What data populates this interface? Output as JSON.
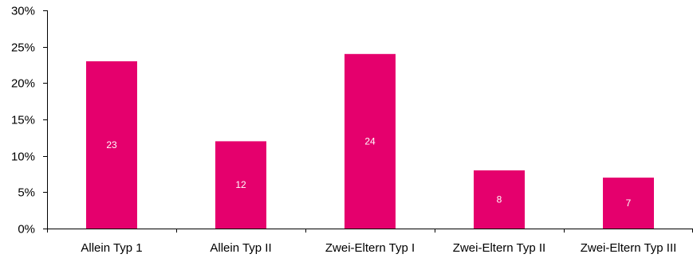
{
  "chart_data": {
    "type": "bar",
    "title": "",
    "xlabel": "",
    "ylabel": "",
    "categories": [
      "Allein Typ 1",
      "Allein Typ II",
      "Zwei-Eltern Typ I",
      "Zwei-Eltern Typ II",
      "Zwei-Eltern Typ III"
    ],
    "values": [
      23,
      12,
      24,
      8,
      7
    ],
    "data_labels": [
      "23",
      "12",
      "24",
      "8",
      "7"
    ],
    "ylim": [
      0,
      30
    ],
    "y_ticks": [
      0,
      5,
      10,
      15,
      20,
      25,
      30
    ],
    "y_tick_labels": [
      "0%",
      "5%",
      "10%",
      "15%",
      "20%",
      "25%",
      "30%"
    ],
    "grid": false,
    "legend": "none",
    "bar_color": "#E5006D"
  }
}
